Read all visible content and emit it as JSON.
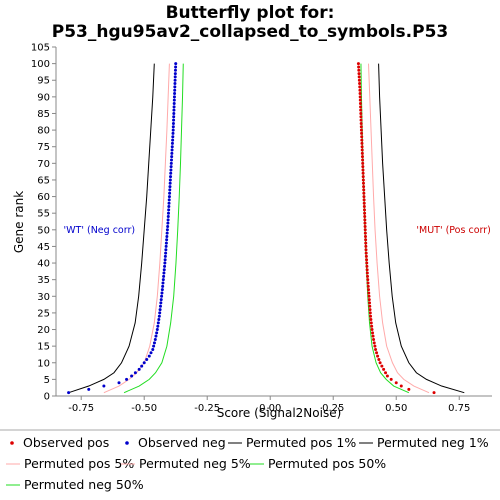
{
  "chart_data": {
    "type": "scatter",
    "title_line1": "Butterfly plot for:",
    "title_line2": "P53_hgu95av2_collapsed_to_symbols.P53",
    "xlabel": "Score (Signal2Noise)",
    "ylabel": "Gene rank",
    "xlim": [
      -0.85,
      0.88
    ],
    "ylim": [
      0,
      105
    ],
    "x_ticks": [
      -0.75,
      -0.5,
      -0.25,
      0.0,
      0.25,
      0.5,
      0.75
    ],
    "x_tick_labels": [
      "-0.75",
      "-0.50",
      "-0.25",
      "0.00",
      "0.25",
      "0.50",
      "0.75"
    ],
    "y_ticks": [
      0,
      5,
      10,
      15,
      20,
      25,
      30,
      35,
      40,
      45,
      50,
      55,
      60,
      65,
      70,
      75,
      80,
      85,
      90,
      95,
      100,
      105
    ],
    "y_tick_labels": [
      "0",
      "5",
      "10",
      "15",
      "20",
      "25",
      "30",
      "35",
      "40",
      "45",
      "50",
      "55",
      "60",
      "65",
      "70",
      "75",
      "80",
      "85",
      "90",
      "95",
      "100",
      "105"
    ],
    "annotations": [
      {
        "text": "'WT' (Neg corr)",
        "color": "#0000cc",
        "x": -0.82,
        "y": 50
      },
      {
        "text": "'MUT' (Pos corr)",
        "color": "#cc0000",
        "x": 0.58,
        "y": 50
      }
    ],
    "colors": {
      "observed_pos": "#dd0000",
      "observed_neg": "#0000cc",
      "permuted_1": "#000000",
      "permuted_5": "#ffaaaa",
      "permuted_50": "#22dd22",
      "axis": "#888888"
    },
    "series": {
      "observed_pos": {
        "name": "Observed pos",
        "points": [
          [
            0.35,
            100
          ],
          [
            0.353,
            96
          ],
          [
            0.356,
            92
          ],
          [
            0.358,
            88
          ],
          [
            0.36,
            84
          ],
          [
            0.362,
            80
          ],
          [
            0.364,
            76
          ],
          [
            0.366,
            72
          ],
          [
            0.368,
            68
          ],
          [
            0.37,
            64
          ],
          [
            0.372,
            60
          ],
          [
            0.374,
            56
          ],
          [
            0.376,
            52
          ],
          [
            0.378,
            48
          ],
          [
            0.38,
            44
          ],
          [
            0.383,
            40
          ],
          [
            0.386,
            36
          ],
          [
            0.39,
            32
          ],
          [
            0.394,
            28
          ],
          [
            0.398,
            24
          ],
          [
            0.404,
            20
          ],
          [
            0.41,
            17
          ],
          [
            0.418,
            14
          ],
          [
            0.426,
            12
          ],
          [
            0.436,
            10
          ],
          [
            0.45,
            8
          ],
          [
            0.465,
            6
          ],
          [
            0.48,
            5
          ],
          [
            0.5,
            4
          ],
          [
            0.52,
            3
          ],
          [
            0.55,
            2
          ],
          [
            0.65,
            1
          ]
        ]
      },
      "observed_neg": {
        "name": "Observed neg",
        "points": [
          [
            -0.375,
            100
          ],
          [
            -0.377,
            96
          ],
          [
            -0.379,
            92
          ],
          [
            -0.381,
            88
          ],
          [
            -0.383,
            84
          ],
          [
            -0.385,
            80
          ],
          [
            -0.388,
            76
          ],
          [
            -0.391,
            72
          ],
          [
            -0.394,
            68
          ],
          [
            -0.397,
            64
          ],
          [
            -0.4,
            60
          ],
          [
            -0.403,
            56
          ],
          [
            -0.406,
            52
          ],
          [
            -0.41,
            48
          ],
          [
            -0.414,
            44
          ],
          [
            -0.418,
            40
          ],
          [
            -0.423,
            36
          ],
          [
            -0.428,
            32
          ],
          [
            -0.434,
            28
          ],
          [
            -0.44,
            24
          ],
          [
            -0.448,
            20
          ],
          [
            -0.456,
            17
          ],
          [
            -0.466,
            14
          ],
          [
            -0.48,
            12
          ],
          [
            -0.5,
            10
          ],
          [
            -0.52,
            8
          ],
          [
            -0.55,
            6
          ],
          [
            -0.57,
            5
          ],
          [
            -0.6,
            4
          ],
          [
            -0.66,
            3
          ],
          [
            -0.72,
            2
          ],
          [
            -0.8,
            1
          ]
        ]
      },
      "permuted_pos_1": {
        "name": "Permuted pos 1%",
        "points": [
          [
            0.43,
            100
          ],
          [
            0.434,
            90
          ],
          [
            0.44,
            80
          ],
          [
            0.446,
            70
          ],
          [
            0.454,
            60
          ],
          [
            0.462,
            50
          ],
          [
            0.472,
            40
          ],
          [
            0.484,
            30
          ],
          [
            0.498,
            22
          ],
          [
            0.52,
            15
          ],
          [
            0.55,
            10
          ],
          [
            0.58,
            7
          ],
          [
            0.62,
            5
          ],
          [
            0.68,
            3
          ],
          [
            0.77,
            1
          ]
        ]
      },
      "permuted_neg_1": {
        "name": "Permuted neg 1%",
        "points": [
          [
            -0.46,
            100
          ],
          [
            -0.466,
            90
          ],
          [
            -0.474,
            80
          ],
          [
            -0.482,
            70
          ],
          [
            -0.49,
            60
          ],
          [
            -0.5,
            50
          ],
          [
            -0.51,
            40
          ],
          [
            -0.522,
            30
          ],
          [
            -0.536,
            22
          ],
          [
            -0.56,
            15
          ],
          [
            -0.59,
            10
          ],
          [
            -0.62,
            7
          ],
          [
            -0.66,
            5
          ],
          [
            -0.72,
            3
          ],
          [
            -0.8,
            1
          ]
        ]
      },
      "permuted_pos_5": {
        "name": "Permuted pos 5%",
        "points": [
          [
            0.39,
            100
          ],
          [
            0.395,
            90
          ],
          [
            0.4,
            80
          ],
          [
            0.405,
            70
          ],
          [
            0.41,
            60
          ],
          [
            0.416,
            50
          ],
          [
            0.424,
            40
          ],
          [
            0.434,
            30
          ],
          [
            0.446,
            22
          ],
          [
            0.462,
            15
          ],
          [
            0.485,
            10
          ],
          [
            0.505,
            7
          ],
          [
            0.53,
            5
          ],
          [
            0.57,
            3
          ],
          [
            0.63,
            1
          ]
        ]
      },
      "permuted_neg_5": {
        "name": "Permuted neg 5%",
        "points": [
          [
            -0.4,
            100
          ],
          [
            -0.405,
            90
          ],
          [
            -0.41,
            80
          ],
          [
            -0.416,
            70
          ],
          [
            -0.422,
            60
          ],
          [
            -0.43,
            50
          ],
          [
            -0.438,
            40
          ],
          [
            -0.448,
            30
          ],
          [
            -0.46,
            22
          ],
          [
            -0.478,
            15
          ],
          [
            -0.5,
            10
          ],
          [
            -0.53,
            7
          ],
          [
            -0.56,
            5
          ],
          [
            -0.6,
            3
          ],
          [
            -0.66,
            1
          ]
        ]
      },
      "permuted_pos_50": {
        "name": "Permuted pos 50%",
        "points": [
          [
            0.36,
            100
          ],
          [
            0.362,
            90
          ],
          [
            0.365,
            80
          ],
          [
            0.368,
            70
          ],
          [
            0.372,
            60
          ],
          [
            0.376,
            50
          ],
          [
            0.381,
            40
          ],
          [
            0.387,
            30
          ],
          [
            0.394,
            22
          ],
          [
            0.404,
            15
          ],
          [
            0.42,
            10
          ],
          [
            0.438,
            7
          ],
          [
            0.46,
            5
          ],
          [
            0.49,
            3
          ],
          [
            0.55,
            1
          ]
        ]
      },
      "permuted_neg_50": {
        "name": "Permuted neg 50%",
        "points": [
          [
            -0.345,
            100
          ],
          [
            -0.348,
            90
          ],
          [
            -0.352,
            80
          ],
          [
            -0.356,
            70
          ],
          [
            -0.361,
            60
          ],
          [
            -0.367,
            50
          ],
          [
            -0.374,
            40
          ],
          [
            -0.383,
            30
          ],
          [
            -0.395,
            22
          ],
          [
            -0.41,
            15
          ],
          [
            -0.43,
            10
          ],
          [
            -0.455,
            7
          ],
          [
            -0.48,
            5
          ],
          [
            -0.52,
            3
          ],
          [
            -0.58,
            1
          ]
        ]
      }
    },
    "legend_order": [
      "observed_pos",
      "observed_neg",
      "permuted_pos_1",
      "permuted_neg_1",
      "permuted_pos_5",
      "permuted_neg_5",
      "permuted_pos_50",
      "permuted_neg_50"
    ],
    "legend": "bottom",
    "grid": false
  }
}
